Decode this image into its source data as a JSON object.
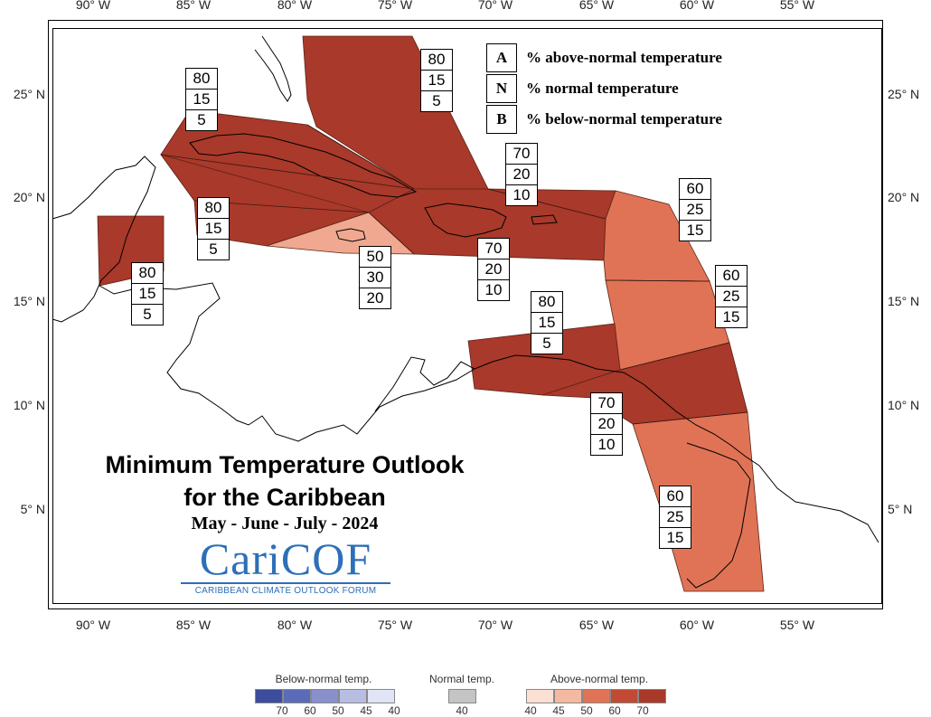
{
  "map": {
    "top_longitudes": [
      "90° W",
      "85° W",
      "80° W",
      "75° W",
      "70° W",
      "65° W",
      "60° W",
      "55° W"
    ],
    "bottom_longitudes": [
      "90° W",
      "85° W",
      "80° W",
      "75° W",
      "70° W",
      "65° W",
      "60° W",
      "55° W"
    ],
    "left_latitudes": [
      "25° N",
      "20° N",
      "15° N",
      "10° N",
      "5° N"
    ],
    "right_latitudes": [
      "25° N",
      "20° N",
      "15° N",
      "10° N",
      "5° N"
    ]
  },
  "legend": {
    "rows": [
      {
        "key": "A",
        "desc": "% above-normal temperature"
      },
      {
        "key": "N",
        "desc": "% normal temperature"
      },
      {
        "key": "B",
        "desc": "% below-normal temperature"
      }
    ]
  },
  "regions": [
    {
      "name": "bahamas",
      "above": "80",
      "normal": "15",
      "below": "5",
      "color": "#a9392a"
    },
    {
      "name": "cuba",
      "above": "80",
      "normal": "15",
      "below": "5",
      "color": "#a9392a"
    },
    {
      "name": "cayman",
      "above": "80",
      "normal": "15",
      "below": "5",
      "color": "#a9392a"
    },
    {
      "name": "belize",
      "above": "80",
      "normal": "15",
      "below": "5",
      "color": "#a9392a"
    },
    {
      "name": "jamaica",
      "above": "50",
      "normal": "30",
      "below": "20",
      "color": "#f0a890"
    },
    {
      "name": "hispaniola",
      "above": "70",
      "normal": "20",
      "below": "10",
      "color": "#a9392a"
    },
    {
      "name": "puerto-rico",
      "above": "70",
      "normal": "20",
      "below": "10",
      "color": "#a9392a"
    },
    {
      "name": "leeward",
      "above": "60",
      "normal": "25",
      "below": "15",
      "color": "#e07356"
    },
    {
      "name": "windward",
      "above": "60",
      "normal": "25",
      "below": "15",
      "color": "#e07356"
    },
    {
      "name": "abc-islands",
      "above": "80",
      "normal": "15",
      "below": "5",
      "color": "#a9392a"
    },
    {
      "name": "trinidad",
      "above": "70",
      "normal": "20",
      "below": "10",
      "color": "#a9392a"
    },
    {
      "name": "guianas",
      "above": "60",
      "normal": "25",
      "below": "15",
      "color": "#e07356"
    }
  ],
  "title": {
    "line1": "Minimum Temperature Outlook",
    "line2": "for the Caribbean",
    "period": "May - June - July - 2024"
  },
  "logo": {
    "word": "CariCOF",
    "subtitle": "CARIBBEAN CLIMATE OUTLOOK FORUM"
  },
  "colorbar": {
    "below_title": "Below-normal temp.",
    "normal_title": "Normal temp.",
    "above_title": "Above-normal temp.",
    "below_ticks": [
      "70",
      "60",
      "50",
      "45",
      "40"
    ],
    "normal_ticks": [
      "40"
    ],
    "above_ticks": [
      "40",
      "45",
      "50",
      "60",
      "70"
    ],
    "below_colors": [
      "#3b4d9c",
      "#5a6cb8",
      "#8890cc",
      "#b8bde2",
      "#e1e4f4"
    ],
    "normal_colors": [
      "#c4c4c4"
    ],
    "above_colors": [
      "#fbe0d4",
      "#f5b9a2",
      "#e07356",
      "#c04a34",
      "#a9392a"
    ]
  }
}
